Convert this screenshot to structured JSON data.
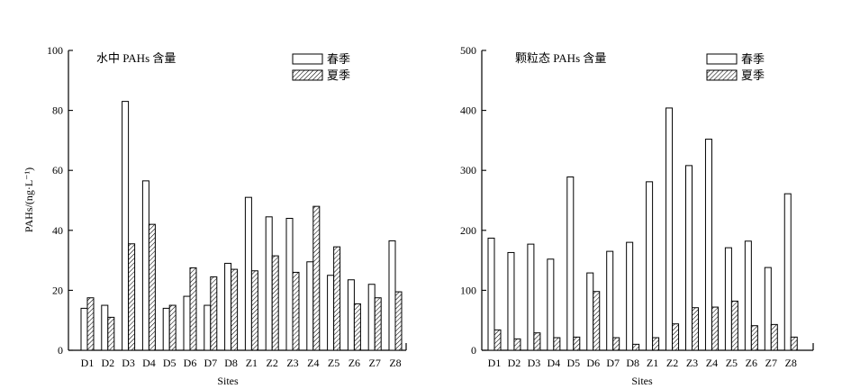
{
  "chart_data": [
    {
      "type": "bar",
      "title": "水中 PAHs 含量",
      "xlabel": "Sites",
      "ylabel": "PAHs/(ng·L⁻¹)",
      "ylim": [
        0,
        100
      ],
      "yticks": [
        0,
        20,
        40,
        60,
        80,
        100
      ],
      "categories": [
        "D1",
        "D2",
        "D3",
        "D4",
        "D5",
        "D6",
        "D7",
        "D8",
        "Z1",
        "Z2",
        "Z3",
        "Z4",
        "Z5",
        "Z6",
        "Z7",
        "Z8"
      ],
      "legend_position": "top-right",
      "series": [
        {
          "name": "春季",
          "pattern": "open",
          "values": [
            14,
            15,
            83,
            56.5,
            14,
            18,
            15,
            29,
            51,
            44.5,
            44,
            29.5,
            25,
            23.5,
            22,
            36.5
          ]
        },
        {
          "name": "夏季",
          "pattern": "hatched",
          "values": [
            17.5,
            11,
            35.5,
            42,
            15,
            27.5,
            24.5,
            27,
            26.5,
            31.5,
            26,
            48,
            34.5,
            15.5,
            17.5,
            19.5
          ]
        }
      ]
    },
    {
      "type": "bar",
      "title": "颗粒态 PAHs 含量",
      "xlabel": "Sites",
      "ylabel": "",
      "ylim": [
        0,
        500
      ],
      "yticks": [
        0,
        100,
        200,
        300,
        400,
        500
      ],
      "categories": [
        "D1",
        "D2",
        "D3",
        "D4",
        "D5",
        "D6",
        "D7",
        "D8",
        "Z1",
        "Z2",
        "Z3",
        "Z4",
        "Z5",
        "Z6",
        "Z7",
        "Z8"
      ],
      "legend_position": "top-right",
      "series": [
        {
          "name": "春季",
          "pattern": "open",
          "values": [
            187,
            163,
            177,
            152,
            289,
            129,
            165,
            180,
            281,
            404,
            308,
            352,
            171,
            182,
            138,
            261
          ]
        },
        {
          "name": "夏季",
          "pattern": "hatched",
          "values": [
            34,
            19,
            29,
            21,
            22,
            98,
            21,
            10,
            21,
            44,
            71,
            72,
            82,
            41,
            43,
            22
          ]
        }
      ]
    }
  ]
}
